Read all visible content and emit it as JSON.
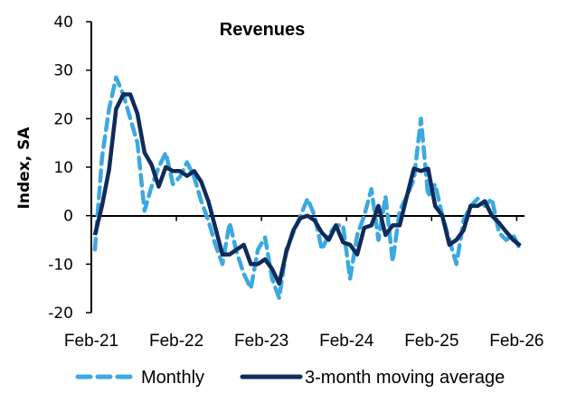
{
  "chart_data": {
    "type": "line",
    "title": "Revenues",
    "xlabel": "",
    "ylabel": "Index, SA",
    "ylim": [
      -20,
      40
    ],
    "yticks": [
      40,
      30,
      20,
      10,
      0,
      -10,
      -20
    ],
    "xtick_labels": [
      "Feb-21",
      "Feb-22",
      "Feb-23",
      "Feb-24",
      "Feb-25",
      "Feb-26"
    ],
    "x_start": "Feb-21",
    "x_end": "Feb-26",
    "frequency": "monthly",
    "grid": false,
    "legend_position": "bottom",
    "series": [
      {
        "name": "Monthly",
        "style": "dashed",
        "color": "#3BA9E0",
        "values": [
          -7,
          12,
          22,
          28.5,
          25,
          20,
          15,
          1,
          6,
          10,
          13,
          6.5,
          8,
          11,
          8,
          3,
          -1,
          -6,
          -10,
          -1.5,
          -7.5,
          -12,
          -15,
          -7,
          -4.5,
          -13,
          -17,
          -7,
          -3.5,
          0,
          3.5,
          0,
          -7,
          -4,
          -2,
          -2,
          -13,
          -4,
          0,
          5.5,
          -5,
          4,
          -9.5,
          1,
          4,
          7.5,
          20,
          4,
          6.5,
          0,
          -5,
          -10,
          -1,
          2,
          3.5,
          2,
          3.5,
          -3.5,
          -5,
          -4,
          -7
        ]
      },
      {
        "name": "3-month moving average",
        "style": "solid",
        "color": "#0F2B5B",
        "values": [
          -4,
          2,
          9.5,
          22,
          25,
          25,
          21,
          13,
          10.5,
          6,
          10,
          9.2,
          9.2,
          8.2,
          9.2,
          7,
          3,
          -2.5,
          -8,
          -8,
          -7,
          -6,
          -10,
          -10,
          -9,
          -11,
          -14,
          -7.5,
          -3,
          -0.5,
          0,
          -1,
          -3.5,
          -5,
          -2,
          -5.5,
          -6,
          -8,
          -2.5,
          -2,
          2,
          -4,
          -2,
          -2,
          4,
          9.7,
          9.2,
          9.7,
          2,
          0,
          -6,
          -5,
          -3,
          2,
          2,
          3,
          0,
          -1.5,
          -3.3,
          -5,
          -6.2
        ]
      }
    ]
  }
}
